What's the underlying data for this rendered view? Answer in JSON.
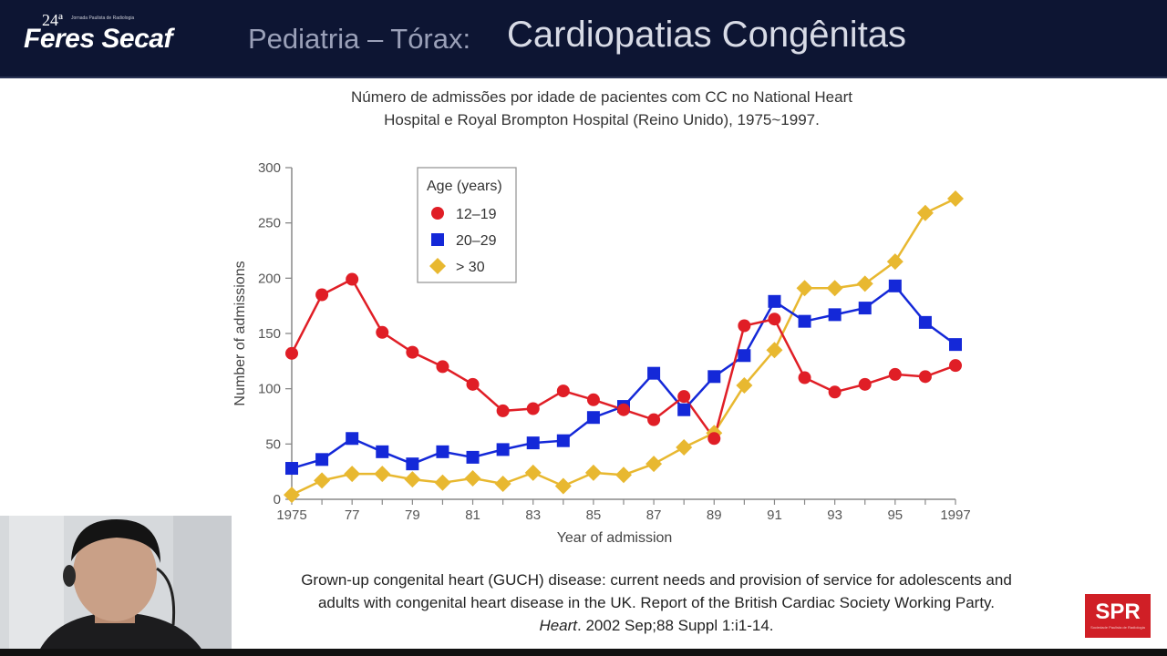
{
  "header": {
    "logo_edition": "24ª",
    "logo_sub": "Jornada Paulista de Radiologia",
    "logo_name": "Feres Secaf",
    "title_prefix": "Pediatria – Tórax:",
    "title_main": "Cardiopatias Congênitas"
  },
  "subtitle_line1": "Número de admissões por idade de pacientes com CC no National Heart",
  "subtitle_line2": "Hospital e Royal Brompton Hospital (Reino Unido), 1975~1997.",
  "citation": {
    "line1": "Grown-up congenital heart (GUCH) disease: current needs and provision of service for adolescents and",
    "line2": "adults with congenital heart disease in the UK. Report of the British Cardiac Society Working Party.",
    "journal": "Heart",
    "ref": ". 2002 Sep;88 Suppl 1:i1-14."
  },
  "badge": {
    "label": "SPR",
    "small": "Sociedade Paulista de Radiologia"
  },
  "colors": {
    "header_bg": "#0d1533",
    "s1": "#e01e26",
    "s2": "#1428d8",
    "s3": "#e8b830"
  },
  "chart_data": {
    "type": "line",
    "title": "",
    "xlabel": "Year of admission",
    "ylabel": "Number of admissions",
    "ylim": [
      0,
      300
    ],
    "xlim": [
      1975,
      1997
    ],
    "yticks": [
      0,
      50,
      100,
      150,
      200,
      250,
      300
    ],
    "xtick_values": [
      1975,
      1977,
      1979,
      1981,
      1983,
      1985,
      1987,
      1989,
      1991,
      1993,
      1995,
      1997
    ],
    "xtick_labels": [
      "1975",
      "77",
      "79",
      "81",
      "83",
      "85",
      "87",
      "89",
      "91",
      "93",
      "95",
      "1997"
    ],
    "legend_title": "Age (years)",
    "legend_position": "top-left",
    "grid": false,
    "x": [
      1975,
      1976,
      1977,
      1978,
      1979,
      1980,
      1981,
      1982,
      1983,
      1984,
      1985,
      1986,
      1987,
      1988,
      1989,
      1990,
      1991,
      1992,
      1993,
      1994,
      1995,
      1996,
      1997
    ],
    "series": [
      {
        "name": "12–19",
        "marker": "circle",
        "color": "#e01e26",
        "values": [
          132,
          185,
          199,
          151,
          133,
          120,
          104,
          80,
          82,
          98,
          90,
          81,
          72,
          93,
          55,
          157,
          163,
          110,
          97,
          104,
          113,
          111,
          121
        ]
      },
      {
        "name": "20–29",
        "marker": "square",
        "color": "#1428d8",
        "values": [
          28,
          36,
          55,
          43,
          32,
          43,
          38,
          45,
          51,
          53,
          74,
          84,
          114,
          81,
          111,
          130,
          179,
          161,
          167,
          173,
          193,
          160,
          140
        ]
      },
      {
        "name": "> 30",
        "marker": "diamond",
        "color": "#e8b830",
        "values": [
          4,
          17,
          23,
          23,
          18,
          15,
          19,
          14,
          24,
          12,
          24,
          22,
          32,
          47,
          60,
          103,
          135,
          191,
          191,
          195,
          215,
          259,
          272
        ]
      }
    ]
  }
}
